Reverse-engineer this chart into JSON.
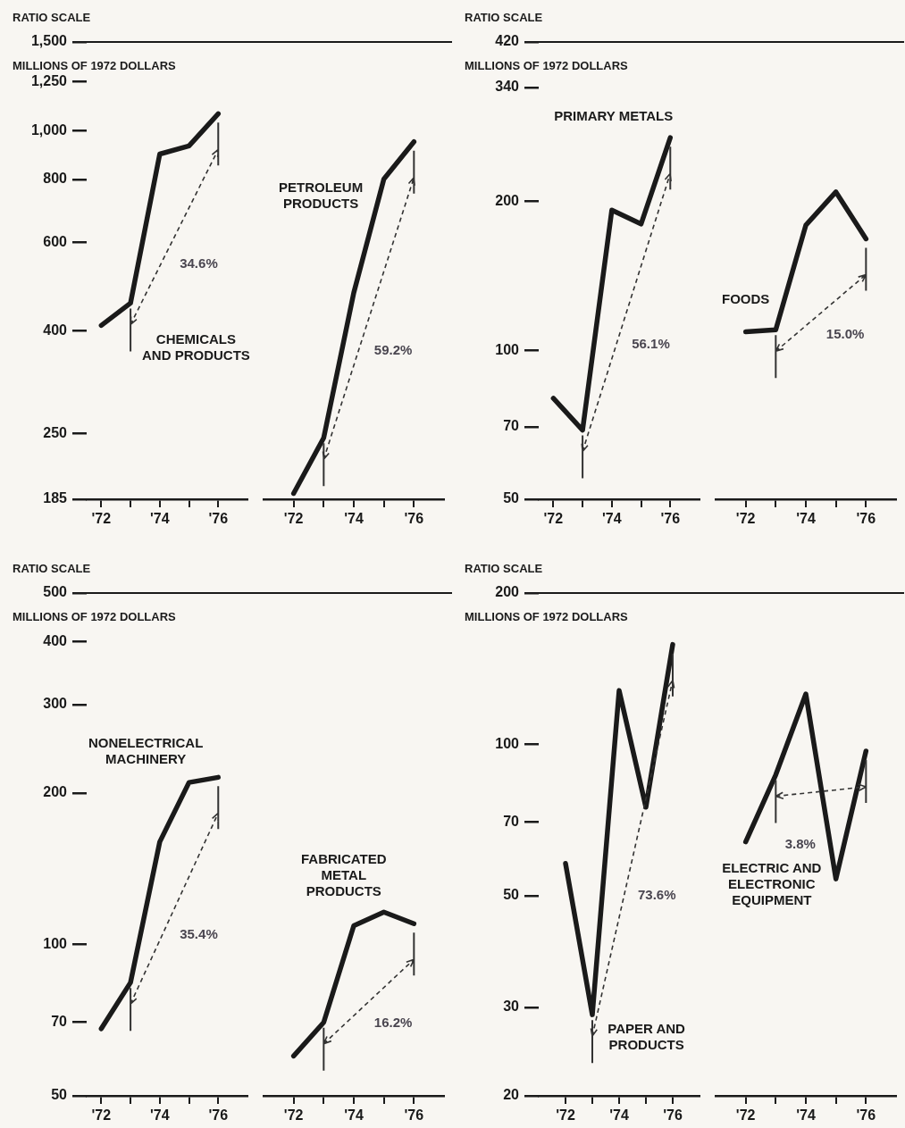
{
  "chart_data": [
    {
      "type": "line",
      "title": "RATIO SCALE",
      "ylabel": "MILLIONS OF 1972 DOLLARS",
      "log": true,
      "grid": false,
      "legend": false,
      "marker": "none",
      "ylim": [
        185,
        1500
      ],
      "yticks": [
        {
          "value": 1500,
          "label": "1,500"
        },
        {
          "value": 1250,
          "label": "1,250"
        },
        {
          "value": 1000,
          "label": "1,000"
        },
        800,
        600,
        400,
        250,
        185
      ],
      "xlim": [
        1971.5,
        1977
      ],
      "xticks": [
        {
          "value": 1972,
          "label": "'72"
        },
        {
          "value": 1973,
          "label": null
        },
        {
          "value": 1974,
          "label": "'74"
        },
        {
          "value": 1975,
          "label": null
        },
        {
          "value": 1976,
          "label": "'76"
        }
      ],
      "x": [
        1972,
        1973,
        1974,
        1975,
        1976
      ],
      "series": [
        {
          "name": "CHEMICALS\nAND PRODUCTS",
          "color": "#1a1a1a",
          "values": [
            410,
            454,
            898,
            932,
            1080
          ]
        }
      ],
      "annotations": [
        "34.6%"
      ]
    },
    {
      "type": "line",
      "log": true,
      "grid": false,
      "legend": false,
      "marker": "none",
      "tick_labels": "x",
      "ylim": [
        185,
        1500
      ],
      "xlim": [
        1971,
        1977
      ],
      "xticks": [
        {
          "value": 1972,
          "label": "'72"
        },
        {
          "value": 1973,
          "label": null
        },
        {
          "value": 1974,
          "label": "'74"
        },
        {
          "value": 1975,
          "label": null
        },
        {
          "value": 1976,
          "label": "'76"
        }
      ],
      "x": [
        1972,
        1973,
        1974,
        1975,
        1976
      ],
      "series": [
        {
          "name": "PETROLEUM\nPRODUCTS",
          "color": "#1a1a1a",
          "values": [
            190,
            245,
            476,
            801,
            950
          ]
        }
      ],
      "annotations": [
        "59.2%"
      ]
    },
    {
      "type": "line",
      "title": "RATIO SCALE",
      "ylabel": "MILLIONS OF 1972 DOLLARS",
      "log": true,
      "grid": false,
      "legend": false,
      "marker": "none",
      "ylim": [
        50,
        420
      ],
      "yticks": [
        420,
        340,
        200,
        100,
        70,
        50
      ],
      "xlim": [
        1971.5,
        1977
      ],
      "xticks": [
        {
          "value": 1972,
          "label": "'72"
        },
        {
          "value": 1973,
          "label": null
        },
        {
          "value": 1974,
          "label": "'74"
        },
        {
          "value": 1975,
          "label": null
        },
        {
          "value": 1976,
          "label": "'76"
        }
      ],
      "x": [
        1972,
        1973,
        1974,
        1975,
        1976
      ],
      "series": [
        {
          "name": "PRIMARY METALS",
          "color": "#1a1a1a",
          "values": [
            80,
            69,
            192,
            180,
            269
          ]
        }
      ],
      "annotations": [
        "56.1%"
      ]
    },
    {
      "type": "line",
      "log": true,
      "grid": false,
      "legend": false,
      "marker": "none",
      "tick_labels": "x",
      "ylim": [
        50,
        420
      ],
      "xlim": [
        1971,
        1977
      ],
      "xticks": [
        {
          "value": 1972,
          "label": "'72"
        },
        {
          "value": 1973,
          "label": null
        },
        {
          "value": 1974,
          "label": "'74"
        },
        {
          "value": 1975,
          "label": null
        },
        {
          "value": 1976,
          "label": "'76"
        }
      ],
      "x": [
        1972,
        1973,
        1974,
        1975,
        1976
      ],
      "series": [
        {
          "name": "FOODS",
          "color": "#1a1a1a",
          "values": [
            109,
            110,
            179,
            209,
            168
          ]
        }
      ],
      "annotations": [
        "15.0%"
      ]
    },
    {
      "type": "line",
      "title": "RATIO SCALE",
      "ylabel": "MILLIONS OF 1972 DOLLARS",
      "log": true,
      "grid": false,
      "legend": false,
      "marker": "none",
      "ylim": [
        50,
        500
      ],
      "yticks": [
        500,
        400,
        300,
        200,
        100,
        70,
        50
      ],
      "xlim": [
        1971.5,
        1977
      ],
      "xticks": [
        {
          "value": 1972,
          "label": "'72"
        },
        {
          "value": 1973,
          "label": null
        },
        {
          "value": 1974,
          "label": "'74"
        },
        {
          "value": 1975,
          "label": null
        },
        {
          "value": 1976,
          "label": "'76"
        }
      ],
      "x": [
        1972,
        1973,
        1974,
        1975,
        1976
      ],
      "series": [
        {
          "name": "NONELECTRICAL\nMACHINERY",
          "color": "#1a1a1a",
          "values": [
            68,
            84,
            160,
            210,
            215
          ]
        }
      ],
      "annotations": [
        "35.4%"
      ]
    },
    {
      "type": "line",
      "log": true,
      "grid": false,
      "legend": false,
      "marker": "none",
      "tick_labels": "x",
      "ylim": [
        50,
        500
      ],
      "xlim": [
        1971,
        1977
      ],
      "xticks": [
        {
          "value": 1972,
          "label": "'72"
        },
        {
          "value": 1973,
          "label": null
        },
        {
          "value": 1974,
          "label": "'74"
        },
        {
          "value": 1975,
          "label": null
        },
        {
          "value": 1976,
          "label": "'76"
        }
      ],
      "x": [
        1972,
        1973,
        1974,
        1975,
        1976
      ],
      "series": [
        {
          "name": "FABRICATED\nMETAL\nPRODUCTS",
          "color": "#1a1a1a",
          "values": [
            60,
            70,
            109,
            116,
            110
          ]
        }
      ],
      "annotations": [
        "16.2%"
      ]
    },
    {
      "type": "line",
      "title": "RATIO SCALE",
      "ylabel": "MILLIONS OF 1972 DOLLARS",
      "log": true,
      "grid": false,
      "legend": false,
      "marker": "none",
      "ylim": [
        20,
        200
      ],
      "yticks": [
        200,
        100,
        70,
        50,
        30,
        20
      ],
      "xlim": [
        1971,
        1977
      ],
      "xticks": [
        {
          "value": 1972,
          "label": "'72"
        },
        {
          "value": 1973,
          "label": null
        },
        {
          "value": 1974,
          "label": "'74"
        },
        {
          "value": 1975,
          "label": null
        },
        {
          "value": 1976,
          "label": "'76"
        }
      ],
      "x": [
        1972,
        1973,
        1974,
        1975,
        1976
      ],
      "series": [
        {
          "name": "PAPER AND\nPRODUCTS",
          "color": "#1a1a1a",
          "values": [
            58,
            29,
            128,
            75,
            158
          ]
        }
      ],
      "annotations": [
        "73.6%"
      ]
    },
    {
      "type": "line",
      "log": true,
      "grid": false,
      "legend": false,
      "marker": "none",
      "tick_labels": "x",
      "ylim": [
        20,
        200
      ],
      "xlim": [
        1971,
        1977
      ],
      "xticks": [
        {
          "value": 1972,
          "label": "'72"
        },
        {
          "value": 1973,
          "label": null
        },
        {
          "value": 1974,
          "label": "'74"
        },
        {
          "value": 1975,
          "label": null
        },
        {
          "value": 1976,
          "label": "'76"
        }
      ],
      "x": [
        1972,
        1973,
        1974,
        1975,
        1976
      ],
      "series": [
        {
          "name": "ELECTRIC AND\nELECTRONIC\nEQUIPMENT",
          "color": "#1a1a1a",
          "values": [
            64,
            87,
            126,
            54,
            97
          ]
        }
      ],
      "annotations": [
        "3.8%"
      ]
    }
  ]
}
